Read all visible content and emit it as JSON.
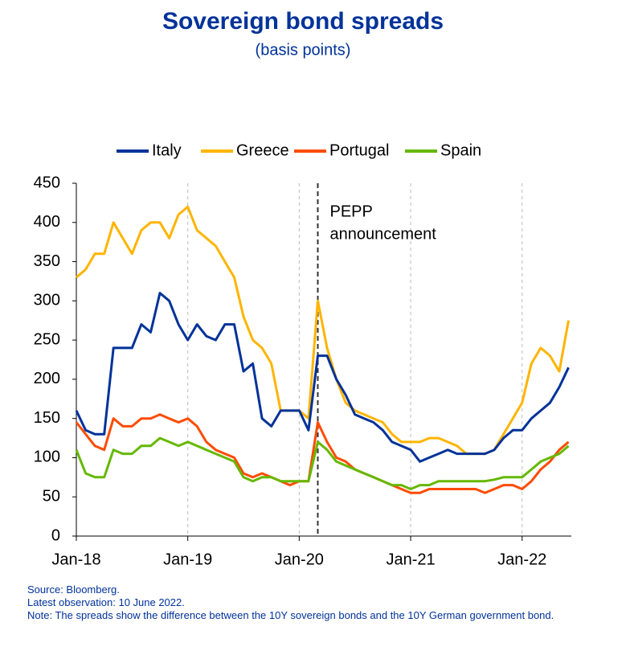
{
  "chart_data": {
    "type": "line",
    "title": "Sovereign bond spreads",
    "subtitle": "(basis points)",
    "categories": [
      "Jan-18",
      null,
      null,
      null,
      null,
      null,
      null,
      null,
      null,
      null,
      null,
      null,
      "Jan-19",
      null,
      null,
      null,
      null,
      null,
      null,
      null,
      null,
      null,
      null,
      null,
      "Jan-20",
      null,
      null,
      null,
      null,
      null,
      null,
      null,
      null,
      null,
      null,
      null,
      "Jan-21",
      null,
      null,
      null,
      null,
      null,
      null,
      null,
      null,
      null,
      null,
      null,
      "Jan-22",
      null,
      null,
      null,
      null,
      null
    ],
    "series": [
      {
        "name": "Italy",
        "color": "#003299",
        "values": [
          160,
          135,
          130,
          130,
          240,
          240,
          240,
          270,
          260,
          310,
          300,
          270,
          250,
          270,
          255,
          250,
          270,
          270,
          210,
          220,
          150,
          140,
          160,
          160,
          160,
          135,
          230,
          230,
          200,
          180,
          155,
          150,
          145,
          135,
          120,
          115,
          110,
          95,
          100,
          105,
          110,
          105,
          105,
          105,
          105,
          110,
          125,
          135,
          135,
          150,
          160,
          170,
          190,
          215
        ]
      },
      {
        "name": "Greece",
        "color": "#FFB400",
        "values": [
          330,
          340,
          360,
          360,
          400,
          380,
          360,
          390,
          400,
          400,
          380,
          410,
          420,
          390,
          380,
          370,
          350,
          330,
          280,
          250,
          240,
          220,
          160,
          160,
          160,
          150,
          300,
          240,
          200,
          170,
          160,
          155,
          150,
          145,
          130,
          120,
          120,
          120,
          125,
          125,
          120,
          115,
          105,
          105,
          105,
          110,
          130,
          150,
          170,
          220,
          240,
          230,
          210,
          275
        ]
      },
      {
        "name": "Portugal",
        "color": "#FF4B00",
        "values": [
          145,
          130,
          115,
          110,
          150,
          140,
          140,
          150,
          150,
          155,
          150,
          145,
          150,
          140,
          120,
          110,
          105,
          100,
          80,
          75,
          80,
          75,
          70,
          65,
          70,
          70,
          145,
          120,
          100,
          95,
          85,
          80,
          75,
          70,
          65,
          60,
          55,
          55,
          60,
          60,
          60,
          60,
          60,
          60,
          55,
          60,
          65,
          65,
          60,
          70,
          85,
          95,
          110,
          120
        ]
      },
      {
        "name": "Spain",
        "color": "#65B800",
        "values": [
          110,
          80,
          75,
          75,
          110,
          105,
          105,
          115,
          115,
          125,
          120,
          115,
          120,
          115,
          110,
          105,
          100,
          95,
          75,
          70,
          75,
          75,
          70,
          70,
          70,
          70,
          120,
          110,
          95,
          90,
          85,
          80,
          75,
          70,
          65,
          65,
          60,
          65,
          65,
          70,
          70,
          70,
          70,
          70,
          70,
          72,
          75,
          75,
          75,
          85,
          95,
          100,
          105,
          115
        ]
      }
    ],
    "ylim": [
      0,
      450
    ],
    "yticks": [
      0,
      50,
      100,
      150,
      200,
      250,
      300,
      350,
      400,
      450
    ],
    "annotation_lines": [
      "PEPP",
      "announcement"
    ],
    "annotation_x": 26,
    "legend": "top",
    "notes": [
      "Source: Bloomberg.",
      "Latest observation: 10 June 2022.",
      "Note: The spreads show the difference between the 10Y sovereign bonds and the 10Y German government bond."
    ]
  }
}
